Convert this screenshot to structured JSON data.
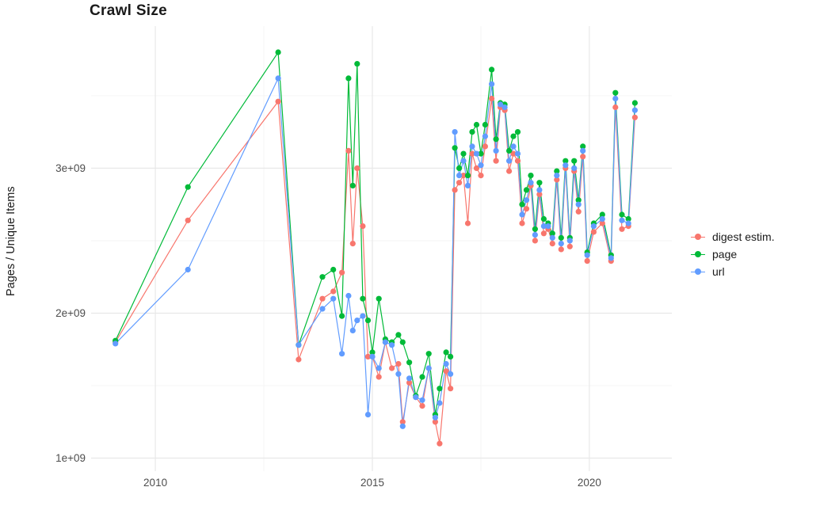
{
  "chart_data": {
    "type": "line",
    "title": "Crawl Size",
    "xlabel": "",
    "ylabel": "Pages / Unique Items",
    "xlim": [
      2008.52,
      2021.9
    ],
    "ylim": [
      910000000,
      3980000000
    ],
    "grid": true,
    "legend_position": "right",
    "x_ticks": [
      {
        "value": 2010,
        "label": "2010"
      },
      {
        "value": 2015,
        "label": "2015"
      },
      {
        "value": 2020,
        "label": "2020"
      }
    ],
    "y_ticks": [
      {
        "value": 1000000000.0,
        "label": "1e+09"
      },
      {
        "value": 2000000000.0,
        "label": "2e+09"
      },
      {
        "value": 3000000000.0,
        "label": "3e+09"
      }
    ],
    "x_minor_gridlines": [
      2012.5,
      2017.5
    ],
    "y_minor_gridlines": [
      1500000000.0,
      2500000000.0,
      3500000000.0
    ],
    "series": [
      {
        "name": "digest estim.",
        "color": "#F8766D",
        "points": [
          [
            2009.08,
            1800000000.0
          ],
          [
            2010.75,
            2640000000.0
          ],
          [
            2012.83,
            3460000000.0
          ],
          [
            2013.3,
            1680000000.0
          ],
          [
            2013.85,
            2100000000.0
          ],
          [
            2014.1,
            2150000000.0
          ],
          [
            2014.3,
            2280000000.0
          ],
          [
            2014.45,
            3120000000.0
          ],
          [
            2014.55,
            2480000000.0
          ],
          [
            2014.65,
            3000000000.0
          ],
          [
            2014.78,
            2600000000.0
          ],
          [
            2014.9,
            1700000000.0
          ],
          [
            2015.0,
            1700000000.0
          ],
          [
            2015.15,
            1560000000.0
          ],
          [
            2015.3,
            1800000000.0
          ],
          [
            2015.45,
            1620000000.0
          ],
          [
            2015.6,
            1650000000.0
          ],
          [
            2015.7,
            1250000000.0
          ],
          [
            2015.85,
            1520000000.0
          ],
          [
            2016.0,
            1420000000.0
          ],
          [
            2016.15,
            1360000000.0
          ],
          [
            2016.3,
            1620000000.0
          ],
          [
            2016.45,
            1250000000.0
          ],
          [
            2016.55,
            1100000000.0
          ],
          [
            2016.7,
            1600000000.0
          ],
          [
            2016.8,
            1480000000.0
          ],
          [
            2016.9,
            2850000000.0
          ],
          [
            2017.0,
            2900000000.0
          ],
          [
            2017.1,
            2950000000.0
          ],
          [
            2017.2,
            2620000000.0
          ],
          [
            2017.3,
            3100000000.0
          ],
          [
            2017.4,
            3000000000.0
          ],
          [
            2017.5,
            2950000000.0
          ],
          [
            2017.6,
            3150000000.0
          ],
          [
            2017.75,
            3480000000.0
          ],
          [
            2017.85,
            3050000000.0
          ],
          [
            2017.95,
            3420000000.0
          ],
          [
            2018.05,
            3400000000.0
          ],
          [
            2018.15,
            2980000000.0
          ],
          [
            2018.25,
            3100000000.0
          ],
          [
            2018.35,
            3050000000.0
          ],
          [
            2018.45,
            2620000000.0
          ],
          [
            2018.55,
            2720000000.0
          ],
          [
            2018.65,
            2880000000.0
          ],
          [
            2018.75,
            2500000000.0
          ],
          [
            2018.85,
            2820000000.0
          ],
          [
            2018.95,
            2550000000.0
          ],
          [
            2019.05,
            2580000000.0
          ],
          [
            2019.15,
            2480000000.0
          ],
          [
            2019.25,
            2920000000.0
          ],
          [
            2019.35,
            2440000000.0
          ],
          [
            2019.45,
            3000000000.0
          ],
          [
            2019.55,
            2460000000.0
          ],
          [
            2019.65,
            2980000000.0
          ],
          [
            2019.75,
            2700000000.0
          ],
          [
            2019.85,
            3080000000.0
          ],
          [
            2019.95,
            2360000000.0
          ],
          [
            2020.1,
            2560000000.0
          ],
          [
            2020.3,
            2620000000.0
          ],
          [
            2020.5,
            2360000000.0
          ],
          [
            2020.6,
            3420000000.0
          ],
          [
            2020.75,
            2580000000.0
          ],
          [
            2020.9,
            2600000000.0
          ],
          [
            2021.05,
            3350000000.0
          ]
        ]
      },
      {
        "name": "page",
        "color": "#00BA38",
        "points": [
          [
            2009.08,
            1810000000.0
          ],
          [
            2010.75,
            2870000000.0
          ],
          [
            2012.83,
            3800000000.0
          ],
          [
            2013.3,
            1780000000.0
          ],
          [
            2013.85,
            2250000000.0
          ],
          [
            2014.1,
            2300000000.0
          ],
          [
            2014.3,
            1980000000.0
          ],
          [
            2014.45,
            3620000000.0
          ],
          [
            2014.55,
            2880000000.0
          ],
          [
            2014.65,
            3720000000.0
          ],
          [
            2014.78,
            2100000000.0
          ],
          [
            2014.9,
            1950000000.0
          ],
          [
            2015.0,
            1730000000.0
          ],
          [
            2015.15,
            2100000000.0
          ],
          [
            2015.3,
            1820000000.0
          ],
          [
            2015.45,
            1800000000.0
          ],
          [
            2015.6,
            1850000000.0
          ],
          [
            2015.7,
            1800000000.0
          ],
          [
            2015.85,
            1660000000.0
          ],
          [
            2016.0,
            1430000000.0
          ],
          [
            2016.15,
            1560000000.0
          ],
          [
            2016.3,
            1720000000.0
          ],
          [
            2016.45,
            1300000000.0
          ],
          [
            2016.55,
            1480000000.0
          ],
          [
            2016.7,
            1730000000.0
          ],
          [
            2016.8,
            1700000000.0
          ],
          [
            2016.9,
            3140000000.0
          ],
          [
            2017.0,
            3000000000.0
          ],
          [
            2017.1,
            3100000000.0
          ],
          [
            2017.2,
            2950000000.0
          ],
          [
            2017.3,
            3250000000.0
          ],
          [
            2017.4,
            3300000000.0
          ],
          [
            2017.5,
            3100000000.0
          ],
          [
            2017.6,
            3300000000.0
          ],
          [
            2017.75,
            3680000000.0
          ],
          [
            2017.85,
            3200000000.0
          ],
          [
            2017.95,
            3450000000.0
          ],
          [
            2018.05,
            3440000000.0
          ],
          [
            2018.15,
            3120000000.0
          ],
          [
            2018.25,
            3220000000.0
          ],
          [
            2018.35,
            3250000000.0
          ],
          [
            2018.45,
            2750000000.0
          ],
          [
            2018.55,
            2850000000.0
          ],
          [
            2018.65,
            2950000000.0
          ],
          [
            2018.75,
            2580000000.0
          ],
          [
            2018.85,
            2900000000.0
          ],
          [
            2018.95,
            2650000000.0
          ],
          [
            2019.05,
            2620000000.0
          ],
          [
            2019.15,
            2550000000.0
          ],
          [
            2019.25,
            2980000000.0
          ],
          [
            2019.35,
            2520000000.0
          ],
          [
            2019.45,
            3050000000.0
          ],
          [
            2019.55,
            2520000000.0
          ],
          [
            2019.65,
            3050000000.0
          ],
          [
            2019.75,
            2780000000.0
          ],
          [
            2019.85,
            3150000000.0
          ],
          [
            2019.95,
            2420000000.0
          ],
          [
            2020.1,
            2620000000.0
          ],
          [
            2020.3,
            2680000000.0
          ],
          [
            2020.5,
            2400000000.0
          ],
          [
            2020.6,
            3520000000.0
          ],
          [
            2020.75,
            2680000000.0
          ],
          [
            2020.9,
            2650000000.0
          ],
          [
            2021.05,
            3450000000.0
          ]
        ]
      },
      {
        "name": "url",
        "color": "#619CFF",
        "points": [
          [
            2009.08,
            1790000000.0
          ],
          [
            2010.75,
            2300000000.0
          ],
          [
            2012.83,
            3620000000.0
          ],
          [
            2013.3,
            1780000000.0
          ],
          [
            2013.85,
            2030000000.0
          ],
          [
            2014.1,
            2100000000.0
          ],
          [
            2014.3,
            1720000000.0
          ],
          [
            2014.45,
            2120000000.0
          ],
          [
            2014.55,
            1880000000.0
          ],
          [
            2014.65,
            1950000000.0
          ],
          [
            2014.78,
            1980000000.0
          ],
          [
            2014.9,
            1300000000.0
          ],
          [
            2015.0,
            1700000000.0
          ],
          [
            2015.15,
            1620000000.0
          ],
          [
            2015.3,
            1800000000.0
          ],
          [
            2015.45,
            1780000000.0
          ],
          [
            2015.6,
            1580000000.0
          ],
          [
            2015.7,
            1220000000.0
          ],
          [
            2015.85,
            1550000000.0
          ],
          [
            2016.0,
            1420000000.0
          ],
          [
            2016.15,
            1400000000.0
          ],
          [
            2016.3,
            1620000000.0
          ],
          [
            2016.45,
            1280000000.0
          ],
          [
            2016.55,
            1380000000.0
          ],
          [
            2016.7,
            1650000000.0
          ],
          [
            2016.8,
            1580000000.0
          ],
          [
            2016.9,
            3250000000.0
          ],
          [
            2017.0,
            2950000000.0
          ],
          [
            2017.1,
            3050000000.0
          ],
          [
            2017.2,
            2880000000.0
          ],
          [
            2017.3,
            3150000000.0
          ],
          [
            2017.4,
            3100000000.0
          ],
          [
            2017.5,
            3020000000.0
          ],
          [
            2017.6,
            3220000000.0
          ],
          [
            2017.75,
            3580000000.0
          ],
          [
            2017.85,
            3120000000.0
          ],
          [
            2017.95,
            3440000000.0
          ],
          [
            2018.05,
            3420000000.0
          ],
          [
            2018.15,
            3050000000.0
          ],
          [
            2018.25,
            3150000000.0
          ],
          [
            2018.35,
            3100000000.0
          ],
          [
            2018.45,
            2680000000.0
          ],
          [
            2018.55,
            2780000000.0
          ],
          [
            2018.65,
            2900000000.0
          ],
          [
            2018.75,
            2540000000.0
          ],
          [
            2018.85,
            2850000000.0
          ],
          [
            2018.95,
            2600000000.0
          ],
          [
            2019.05,
            2600000000.0
          ],
          [
            2019.15,
            2520000000.0
          ],
          [
            2019.25,
            2950000000.0
          ],
          [
            2019.35,
            2480000000.0
          ],
          [
            2019.45,
            3020000000.0
          ],
          [
            2019.55,
            2500000000.0
          ],
          [
            2019.65,
            3000000000.0
          ],
          [
            2019.75,
            2750000000.0
          ],
          [
            2019.85,
            3120000000.0
          ],
          [
            2019.95,
            2400000000.0
          ],
          [
            2020.1,
            2600000000.0
          ],
          [
            2020.3,
            2650000000.0
          ],
          [
            2020.5,
            2380000000.0
          ],
          [
            2020.6,
            3480000000.0
          ],
          [
            2020.75,
            2640000000.0
          ],
          [
            2020.9,
            2620000000.0
          ],
          [
            2021.05,
            3400000000.0
          ]
        ]
      }
    ]
  }
}
